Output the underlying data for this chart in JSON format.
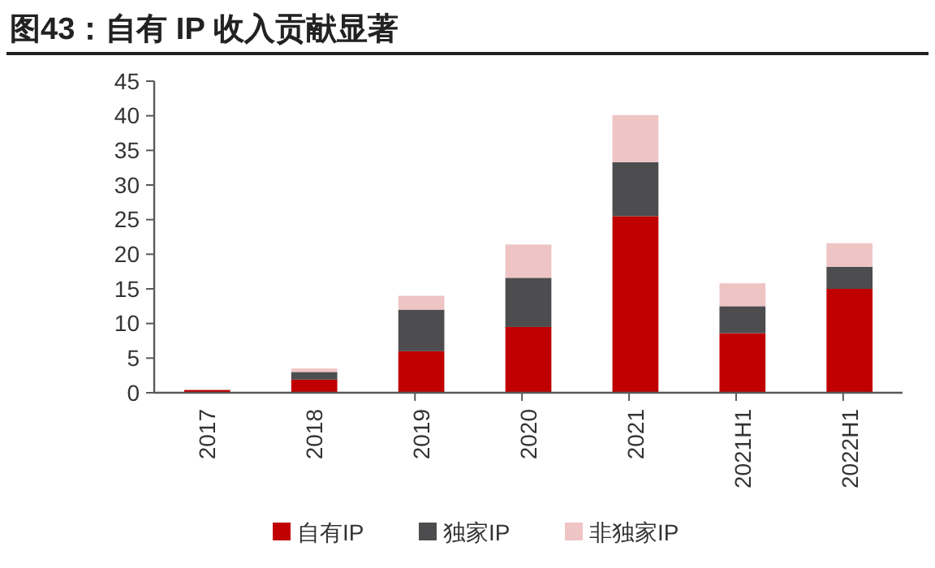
{
  "chart_data": {
    "type": "bar",
    "title": "图43：自有 IP 收入贡献显著",
    "stacked": true,
    "legend": "bottom",
    "grid": false,
    "categories": [
      "2017",
      "2018",
      "2019",
      "2020",
      "2021",
      "2021H1",
      "2022H1"
    ],
    "series": [
      {
        "name": "自有IP",
        "color": "#c00000",
        "values": [
          0.4,
          1.9,
          6.0,
          9.5,
          25.5,
          8.6,
          15.0
        ]
      },
      {
        "name": "独家IP",
        "color": "#4d4d4f",
        "values": [
          0,
          1.1,
          6.0,
          7.1,
          7.8,
          3.9,
          3.2
        ]
      },
      {
        "name": "非独家IP",
        "color": "#efc4c5",
        "values": [
          0,
          0.5,
          2.0,
          4.8,
          6.8,
          3.3,
          3.4
        ]
      }
    ],
    "ylim": [
      0,
      45
    ],
    "yticks": [
      0,
      5,
      10,
      15,
      20,
      25,
      30,
      35,
      40,
      45
    ]
  }
}
